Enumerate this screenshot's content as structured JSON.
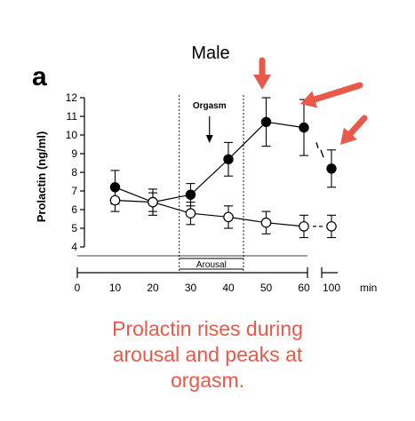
{
  "figure": {
    "title": "Male",
    "panel_label": "a",
    "caption_lines": [
      "Prolactin rises during",
      "arousal and peaks at",
      "orgasm."
    ]
  },
  "colors": {
    "annotation_red": "#e8594a",
    "ink": "#000000"
  },
  "chart_data": {
    "type": "line",
    "title": "Male",
    "ylabel": "Prolactin (ng/ml)",
    "xlabel": "min",
    "ylim": [
      4,
      12
    ],
    "yticks": [
      4,
      5,
      6,
      7,
      8,
      9,
      10,
      11,
      12
    ],
    "xticks": [
      "0",
      "10",
      "20",
      "30",
      "40",
      "50",
      "60",
      "100"
    ],
    "x_axis_break": "between 60 and 100",
    "series": [
      {
        "marker": "filled-circle",
        "x": [
          10,
          20,
          30,
          40,
          50,
          60,
          100
        ],
        "values": [
          7.2,
          6.4,
          6.8,
          8.7,
          10.7,
          10.4,
          8.2
        ],
        "error": [
          0.9,
          0.7,
          0.6,
          0.9,
          1.3,
          1.5,
          1.0
        ]
      },
      {
        "marker": "open-circle",
        "x": [
          10,
          20,
          30,
          40,
          50,
          60,
          100
        ],
        "values": [
          6.5,
          6.4,
          5.8,
          5.6,
          5.3,
          5.1,
          5.1
        ],
        "error": [
          0.6,
          0.5,
          0.6,
          0.6,
          0.6,
          0.6,
          0.6
        ]
      }
    ],
    "annotations": [
      {
        "text": "Orgasm",
        "type": "arrow-label",
        "x": 35
      },
      {
        "text": "Arousal",
        "type": "bracket-label",
        "x_range": [
          27,
          44
        ]
      }
    ],
    "shaded_period_bounds": [
      27,
      44
    ],
    "red_arrows_point_to_x": [
      50,
      60,
      100
    ],
    "legend": "none",
    "grid": false
  }
}
